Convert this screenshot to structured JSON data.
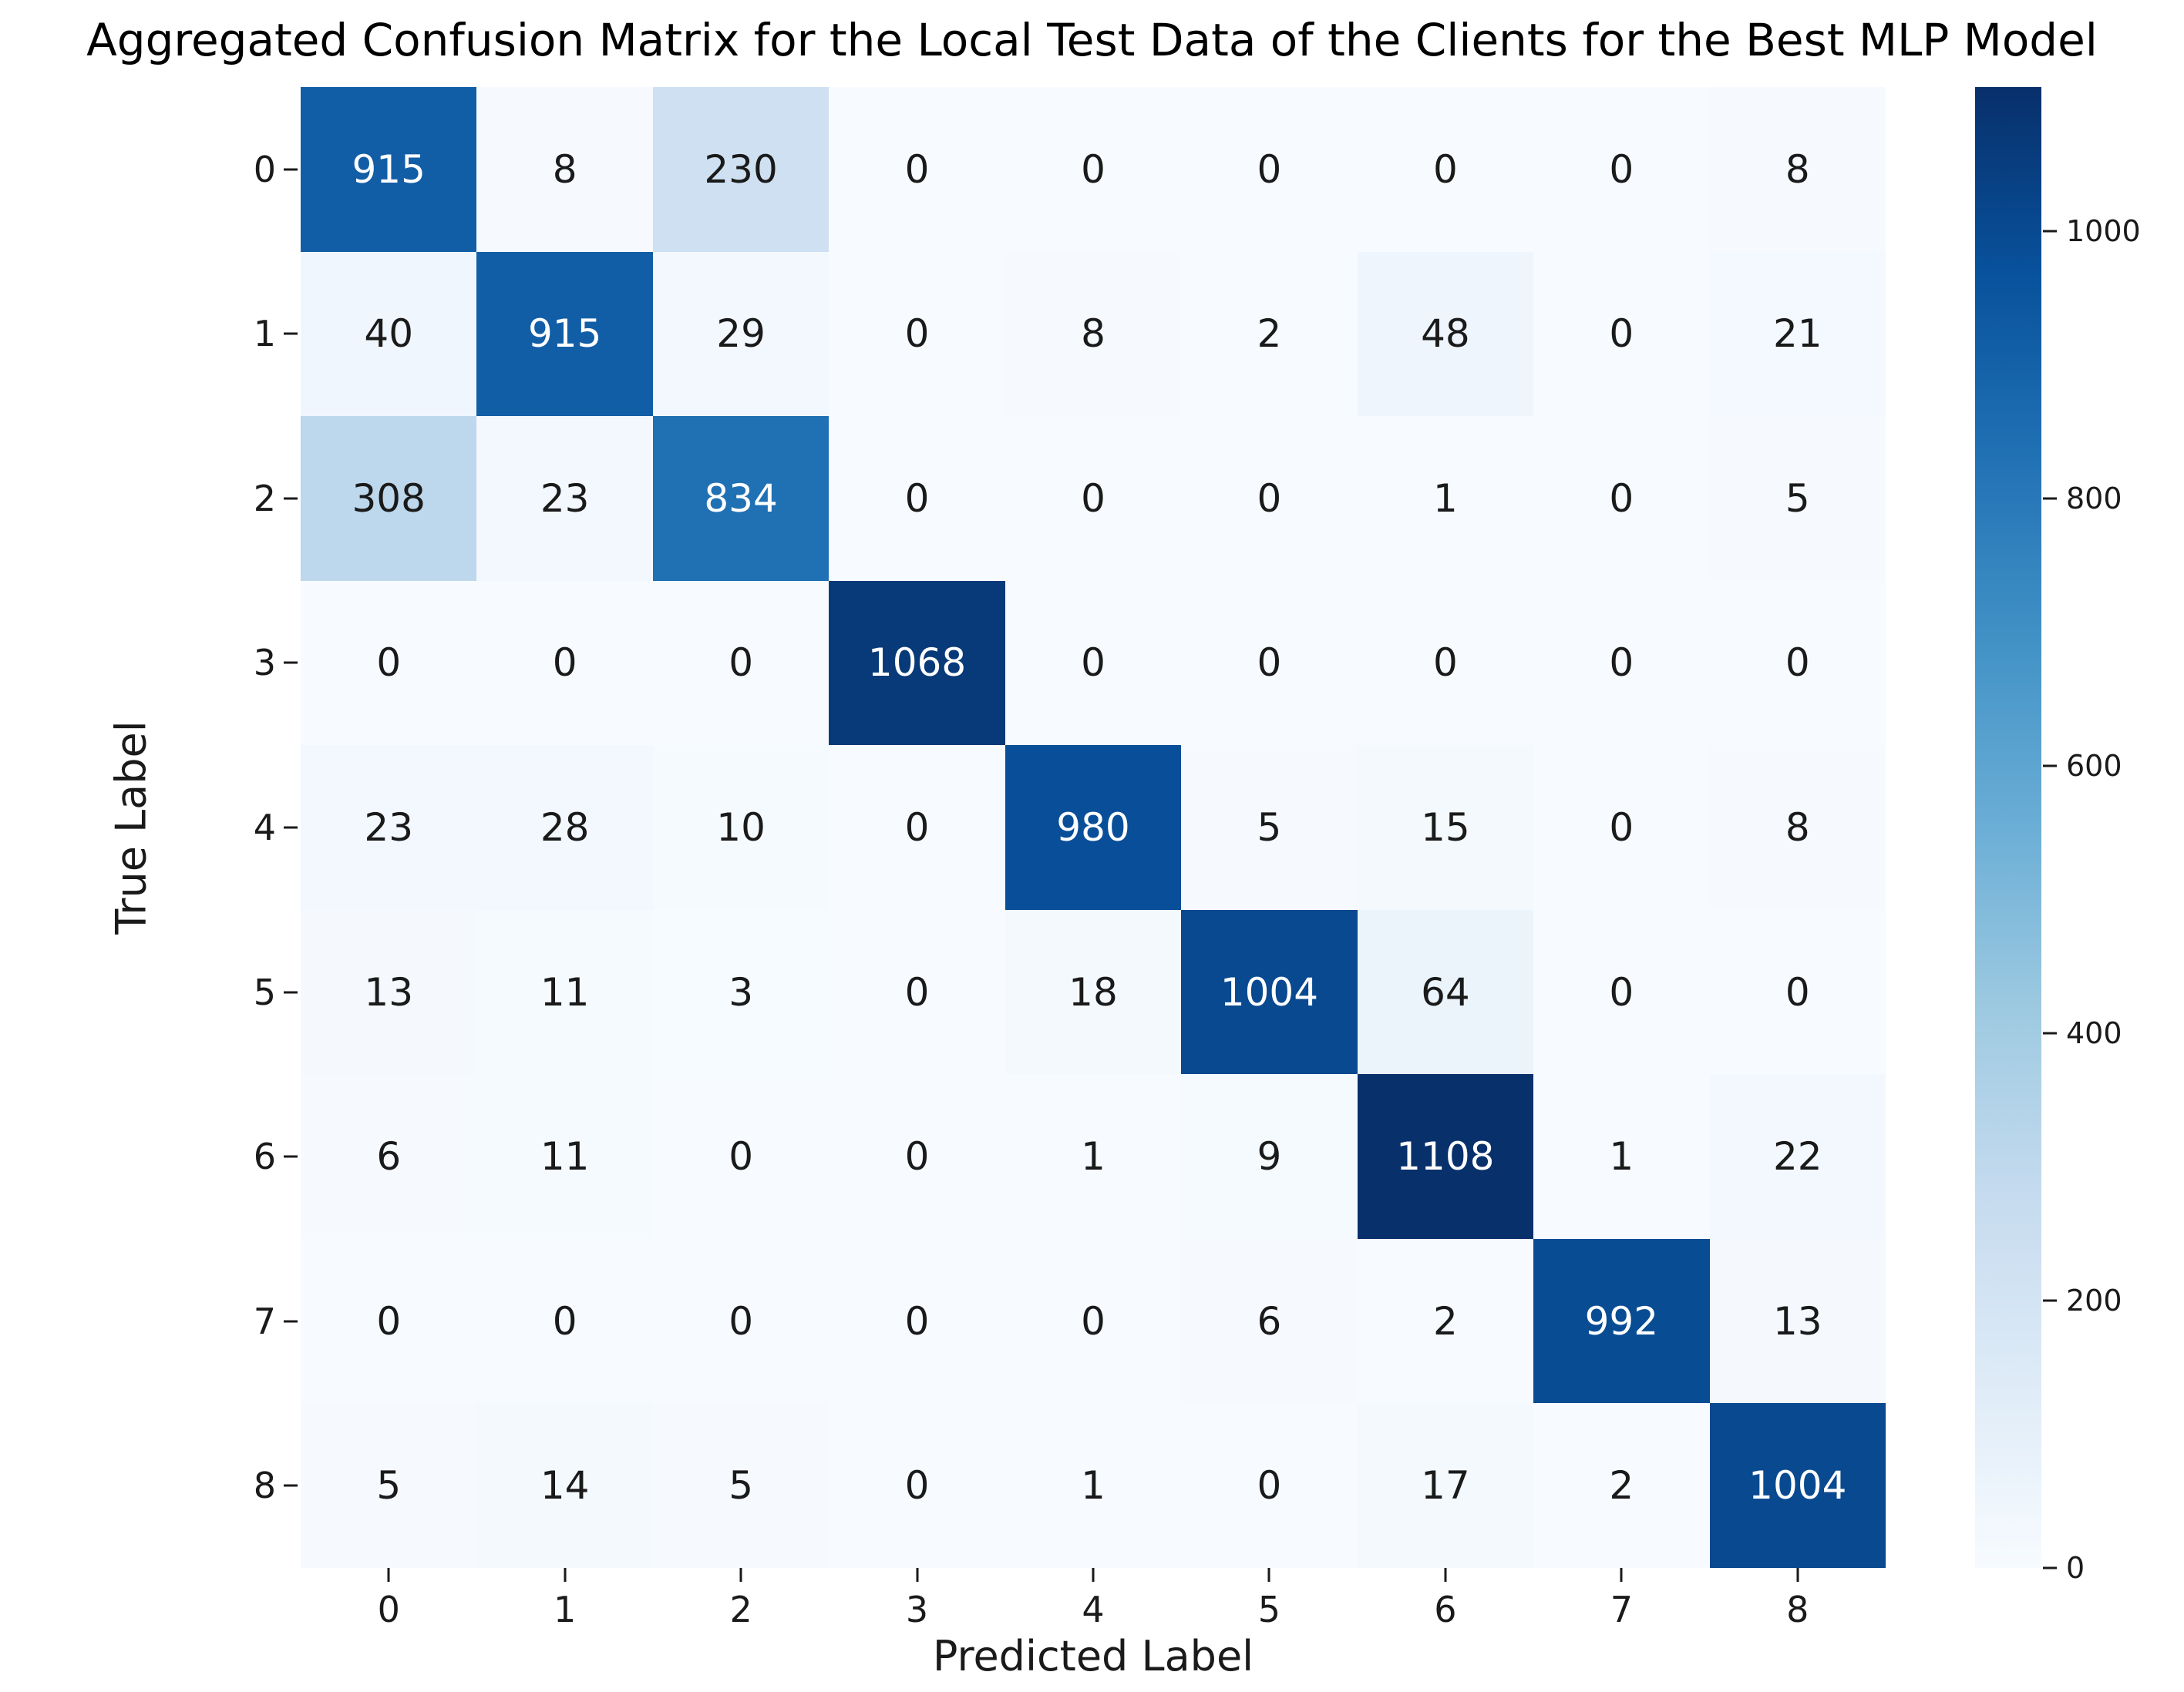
{
  "title": "Aggregated Confusion Matrix for the Local Test Data of the Clients for the Best MLP Model",
  "chart_data": {
    "type": "heatmap",
    "title": "Aggregated Confusion Matrix for the Local Test Data of the Clients for the Best MLP Model",
    "xlabel": "Predicted Label",
    "ylabel": "True Label",
    "x_ticklabels": [
      "0",
      "1",
      "2",
      "3",
      "4",
      "5",
      "6",
      "7",
      "8"
    ],
    "y_ticklabels": [
      "0",
      "1",
      "2",
      "3",
      "4",
      "5",
      "6",
      "7",
      "8"
    ],
    "matrix": [
      [
        915,
        8,
        230,
        0,
        0,
        0,
        0,
        0,
        8
      ],
      [
        40,
        915,
        29,
        0,
        8,
        2,
        48,
        0,
        21
      ],
      [
        308,
        23,
        834,
        0,
        0,
        0,
        1,
        0,
        5
      ],
      [
        0,
        0,
        0,
        1068,
        0,
        0,
        0,
        0,
        0
      ],
      [
        23,
        28,
        10,
        0,
        980,
        5,
        15,
        0,
        8
      ],
      [
        13,
        11,
        3,
        0,
        18,
        1004,
        64,
        0,
        0
      ],
      [
        6,
        11,
        0,
        0,
        1,
        9,
        1108,
        1,
        22
      ],
      [
        0,
        0,
        0,
        0,
        0,
        6,
        2,
        992,
        13
      ],
      [
        5,
        14,
        5,
        0,
        1,
        0,
        17,
        2,
        1004
      ]
    ],
    "vmin": 0,
    "vmax": 1108,
    "colormap_name": "Blues",
    "colormap_stops": [
      "#f7fbff",
      "#deebf7",
      "#c6dbef",
      "#9ecae1",
      "#6baed6",
      "#4292c6",
      "#2171b5",
      "#08519c",
      "#08306b"
    ],
    "colorbar_ticks": [
      0,
      200,
      400,
      600,
      800,
      1000
    ],
    "colorbar_position": "right",
    "grid": false,
    "annotation_colors": {
      "light": "#ffffff",
      "dark": "#1a1a1a"
    }
  }
}
